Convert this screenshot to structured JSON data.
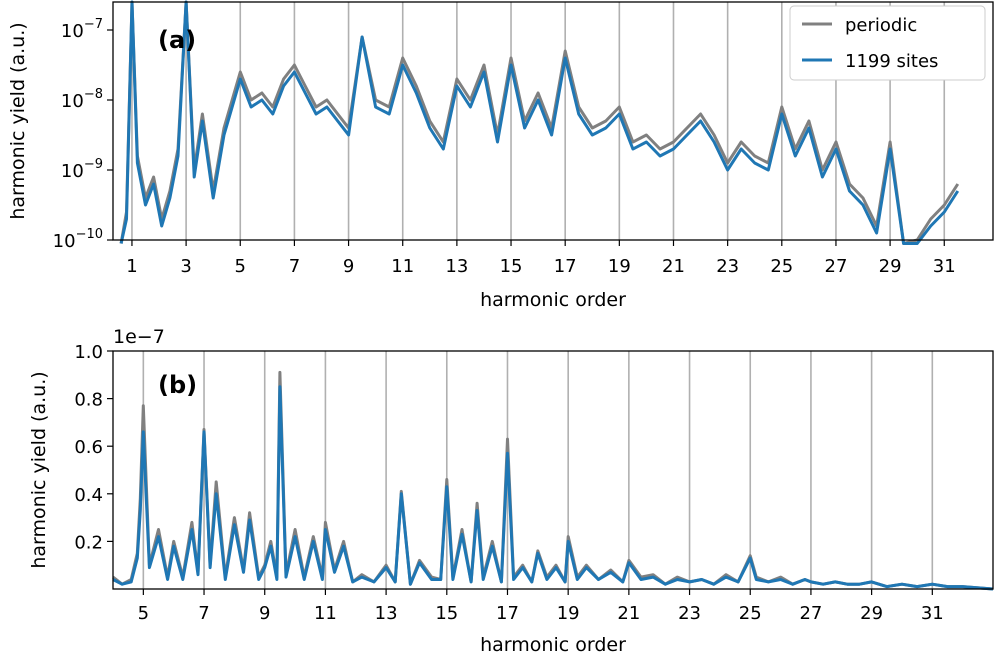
{
  "chart_data": [
    {
      "type": "line",
      "panel_label": "(a)",
      "xlabel": "harmonic order",
      "ylabel": "harmonic yield (a.u.)",
      "yscale": "log",
      "xlim": [
        0.3,
        32.8
      ],
      "ylim_exp": [
        -10,
        -6.6
      ],
      "x_ticks": [
        1,
        3,
        5,
        7,
        9,
        11,
        13,
        15,
        17,
        19,
        21,
        23,
        25,
        27,
        29,
        31
      ],
      "y_ticks": [
        {
          "exp": -7,
          "label": "10",
          "sup": "−7"
        },
        {
          "exp": -8,
          "label": "10",
          "sup": "−8"
        },
        {
          "exp": -9,
          "label": "10",
          "sup": "−9"
        },
        {
          "exp": -10,
          "label": "10",
          "sup": "−10"
        }
      ],
      "grid": "vertical lines at odd harmonics",
      "legend": {
        "placement": "top-right",
        "entries": [
          "periodic",
          "1199 sites"
        ]
      },
      "colors": {
        "periodic": "#808080",
        "sites": "#1f77b4",
        "grid": "#b0b0b0"
      },
      "series": [
        {
          "name": "periodic",
          "x": [
            0.6,
            0.8,
            1.0,
            1.2,
            1.5,
            1.8,
            2.1,
            2.4,
            2.7,
            3.0,
            3.3,
            3.6,
            4.0,
            4.4,
            5.0,
            5.4,
            5.8,
            6.2,
            6.6,
            7.0,
            7.4,
            7.8,
            8.2,
            8.6,
            9.0,
            9.5,
            10.0,
            10.5,
            11.0,
            11.5,
            12.0,
            12.5,
            13.0,
            13.5,
            14.0,
            14.5,
            15.0,
            15.5,
            16.0,
            16.5,
            17.0,
            17.5,
            18.0,
            18.5,
            19.0,
            19.5,
            20.0,
            20.5,
            21.0,
            21.5,
            22.0,
            22.5,
            23.0,
            23.5,
            24.0,
            24.5,
            25.0,
            25.5,
            26.0,
            26.5,
            27.0,
            27.5,
            28.0,
            28.5,
            29.0,
            29.5,
            30.0,
            30.5,
            31.0,
            31.5
          ],
          "log10_y": [
            -10.5,
            -9.6,
            -6.6,
            -8.8,
            -9.4,
            -9.1,
            -9.7,
            -9.3,
            -8.7,
            -6.6,
            -9.0,
            -8.2,
            -9.3,
            -8.4,
            -7.6,
            -8.0,
            -7.9,
            -8.1,
            -7.7,
            -7.5,
            -7.8,
            -8.1,
            -8.0,
            -8.2,
            -8.4,
            -7.1,
            -8.0,
            -8.1,
            -7.4,
            -7.8,
            -8.3,
            -8.6,
            -7.7,
            -8.0,
            -7.5,
            -8.5,
            -7.4,
            -8.3,
            -7.9,
            -8.4,
            -7.3,
            -8.1,
            -8.4,
            -8.3,
            -8.1,
            -8.6,
            -8.5,
            -8.7,
            -8.6,
            -8.4,
            -8.2,
            -8.5,
            -8.9,
            -8.6,
            -8.8,
            -8.9,
            -8.1,
            -8.7,
            -8.3,
            -9.0,
            -8.6,
            -9.2,
            -9.4,
            -9.8,
            -8.6,
            -10.2,
            -10.0,
            -9.7,
            -9.5,
            -9.2
          ]
        },
        {
          "name": "1199 sites",
          "x": [
            0.6,
            0.8,
            1.0,
            1.2,
            1.5,
            1.8,
            2.1,
            2.4,
            2.7,
            3.0,
            3.3,
            3.6,
            4.0,
            4.4,
            5.0,
            5.4,
            5.8,
            6.2,
            6.6,
            7.0,
            7.4,
            7.8,
            8.2,
            8.6,
            9.0,
            9.5,
            10.0,
            10.5,
            11.0,
            11.5,
            12.0,
            12.5,
            13.0,
            13.5,
            14.0,
            14.5,
            15.0,
            15.5,
            16.0,
            16.5,
            17.0,
            17.5,
            18.0,
            18.5,
            19.0,
            19.5,
            20.0,
            20.5,
            21.0,
            21.5,
            22.0,
            22.5,
            23.0,
            23.5,
            24.0,
            24.5,
            25.0,
            25.5,
            26.0,
            26.5,
            27.0,
            27.5,
            28.0,
            28.5,
            29.0,
            29.5,
            30.0,
            30.5,
            31.0,
            31.5
          ],
          "log10_y": [
            -10.6,
            -9.7,
            -6.6,
            -8.9,
            -9.5,
            -9.2,
            -9.8,
            -9.4,
            -8.8,
            -6.6,
            -9.1,
            -8.3,
            -9.4,
            -8.5,
            -7.7,
            -8.1,
            -8.0,
            -8.2,
            -7.8,
            -7.6,
            -7.9,
            -8.2,
            -8.1,
            -8.3,
            -8.5,
            -7.1,
            -8.1,
            -8.2,
            -7.5,
            -7.9,
            -8.4,
            -8.7,
            -7.8,
            -8.1,
            -7.6,
            -8.6,
            -7.5,
            -8.4,
            -8.0,
            -8.5,
            -7.4,
            -8.2,
            -8.5,
            -8.4,
            -8.2,
            -8.7,
            -8.6,
            -8.8,
            -8.7,
            -8.5,
            -8.3,
            -8.6,
            -9.0,
            -8.7,
            -8.9,
            -9.0,
            -8.2,
            -8.8,
            -8.4,
            -9.1,
            -8.7,
            -9.3,
            -9.5,
            -9.9,
            -8.7,
            -10.3,
            -10.1,
            -9.8,
            -9.6,
            -9.3
          ]
        }
      ]
    },
    {
      "type": "line",
      "panel_label": "(b)",
      "xlabel": "harmonic order",
      "ylabel": "harmonic yield (a.u.)",
      "yscale": "linear",
      "offset_text": "1e−7",
      "xlim": [
        4.0,
        33.0
      ],
      "ylim": [
        0.0,
        1.0
      ],
      "x_ticks": [
        5,
        7,
        9,
        11,
        13,
        15,
        17,
        19,
        21,
        23,
        25,
        27,
        29,
        31
      ],
      "y_ticks": [
        {
          "value": 0.2,
          "label": "0.2"
        },
        {
          "value": 0.4,
          "label": "0.4"
        },
        {
          "value": 0.6,
          "label": "0.6"
        },
        {
          "value": 0.8,
          "label": "0.8"
        },
        {
          "value": 1.0,
          "label": "1.0"
        }
      ],
      "grid": "vertical lines at odd harmonics",
      "series": [
        {
          "name": "periodic",
          "x": [
            4.0,
            4.3,
            4.6,
            4.8,
            4.9,
            5.0,
            5.2,
            5.5,
            5.8,
            6.0,
            6.3,
            6.6,
            6.8,
            7.0,
            7.2,
            7.4,
            7.7,
            8.0,
            8.3,
            8.5,
            8.8,
            9.0,
            9.2,
            9.4,
            9.5,
            9.7,
            10.0,
            10.3,
            10.6,
            10.9,
            11.0,
            11.3,
            11.6,
            11.9,
            12.2,
            12.6,
            13.0,
            13.3,
            13.5,
            13.8,
            14.1,
            14.5,
            14.8,
            15.0,
            15.2,
            15.5,
            15.8,
            16.0,
            16.2,
            16.5,
            16.8,
            17.0,
            17.2,
            17.5,
            17.8,
            18.0,
            18.3,
            18.6,
            18.9,
            19.0,
            19.3,
            19.6,
            20.0,
            20.4,
            20.8,
            21.0,
            21.4,
            21.8,
            22.2,
            22.6,
            23.0,
            23.4,
            23.8,
            24.2,
            24.6,
            25.0,
            25.2,
            25.6,
            26.0,
            26.4,
            26.8,
            27.0,
            27.4,
            27.8,
            28.2,
            28.6,
            29.0,
            29.5,
            30.0,
            30.5,
            31.0,
            31.5,
            32.0,
            33.0
          ],
          "y": [
            0.05,
            0.02,
            0.04,
            0.15,
            0.38,
            0.77,
            0.1,
            0.25,
            0.05,
            0.2,
            0.05,
            0.28,
            0.07,
            0.67,
            0.1,
            0.45,
            0.05,
            0.3,
            0.08,
            0.32,
            0.05,
            0.1,
            0.2,
            0.05,
            0.91,
            0.06,
            0.25,
            0.05,
            0.22,
            0.05,
            0.28,
            0.08,
            0.2,
            0.03,
            0.06,
            0.03,
            0.1,
            0.03,
            0.41,
            0.02,
            0.12,
            0.05,
            0.04,
            0.46,
            0.05,
            0.25,
            0.03,
            0.36,
            0.05,
            0.2,
            0.03,
            0.63,
            0.05,
            0.1,
            0.03,
            0.16,
            0.05,
            0.1,
            0.03,
            0.22,
            0.05,
            0.1,
            0.04,
            0.08,
            0.03,
            0.12,
            0.05,
            0.06,
            0.02,
            0.05,
            0.03,
            0.04,
            0.02,
            0.06,
            0.03,
            0.14,
            0.05,
            0.03,
            0.05,
            0.02,
            0.04,
            0.03,
            0.02,
            0.03,
            0.02,
            0.02,
            0.03,
            0.01,
            0.02,
            0.01,
            0.02,
            0.01,
            0.01,
            0.0
          ]
        },
        {
          "name": "1199 sites",
          "x": [
            4.0,
            4.3,
            4.6,
            4.8,
            4.9,
            5.0,
            5.2,
            5.5,
            5.8,
            6.0,
            6.3,
            6.6,
            6.8,
            7.0,
            7.2,
            7.4,
            7.7,
            8.0,
            8.3,
            8.5,
            8.8,
            9.0,
            9.2,
            9.4,
            9.5,
            9.7,
            10.0,
            10.3,
            10.6,
            10.9,
            11.0,
            11.3,
            11.6,
            11.9,
            12.2,
            12.6,
            13.0,
            13.3,
            13.5,
            13.8,
            14.1,
            14.5,
            14.8,
            15.0,
            15.2,
            15.5,
            15.8,
            16.0,
            16.2,
            16.5,
            16.8,
            17.0,
            17.2,
            17.5,
            17.8,
            18.0,
            18.3,
            18.6,
            18.9,
            19.0,
            19.3,
            19.6,
            20.0,
            20.4,
            20.8,
            21.0,
            21.4,
            21.8,
            22.2,
            22.6,
            23.0,
            23.4,
            23.8,
            24.2,
            24.6,
            25.0,
            25.2,
            25.6,
            26.0,
            26.4,
            26.8,
            27.0,
            27.4,
            27.8,
            28.2,
            28.6,
            29.0,
            29.5,
            30.0,
            30.5,
            31.0,
            31.5,
            32.0,
            33.0
          ],
          "y": [
            0.04,
            0.02,
            0.03,
            0.13,
            0.33,
            0.66,
            0.09,
            0.22,
            0.04,
            0.18,
            0.04,
            0.25,
            0.06,
            0.66,
            0.09,
            0.4,
            0.04,
            0.27,
            0.07,
            0.29,
            0.04,
            0.09,
            0.18,
            0.04,
            0.85,
            0.05,
            0.22,
            0.04,
            0.2,
            0.04,
            0.25,
            0.07,
            0.18,
            0.03,
            0.05,
            0.03,
            0.09,
            0.03,
            0.4,
            0.02,
            0.11,
            0.04,
            0.04,
            0.43,
            0.04,
            0.23,
            0.03,
            0.33,
            0.04,
            0.18,
            0.03,
            0.57,
            0.04,
            0.09,
            0.03,
            0.15,
            0.04,
            0.09,
            0.03,
            0.2,
            0.04,
            0.09,
            0.04,
            0.07,
            0.03,
            0.11,
            0.04,
            0.05,
            0.02,
            0.04,
            0.03,
            0.04,
            0.02,
            0.05,
            0.03,
            0.13,
            0.04,
            0.03,
            0.04,
            0.02,
            0.04,
            0.03,
            0.02,
            0.03,
            0.02,
            0.02,
            0.03,
            0.01,
            0.02,
            0.01,
            0.02,
            0.01,
            0.01,
            0.0
          ]
        }
      ]
    }
  ]
}
